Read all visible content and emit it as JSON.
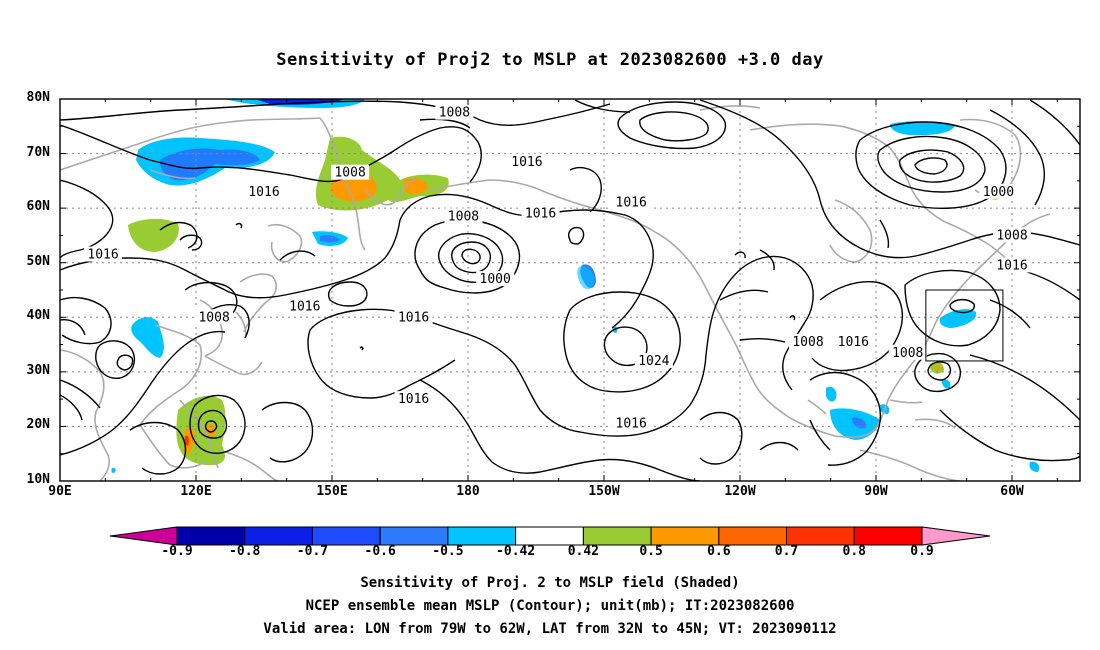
{
  "title": "Sensitivity of Proj2 to MSLP at 2023082600 +3.0 day",
  "lat_labels": [
    "80N",
    "70N",
    "60N",
    "50N",
    "40N",
    "30N",
    "20N",
    "10N"
  ],
  "lon_labels": [
    "90E",
    "120E",
    "150E",
    "180",
    "150W",
    "120W",
    "90W",
    "60W"
  ],
  "contour_labels": [
    {
      "text": "1008",
      "lon": 177,
      "lat": 77.5
    },
    {
      "text": "1016",
      "lon": 193,
      "lat": 68.5
    },
    {
      "text": "1008",
      "lon": 154,
      "lat": 66.5
    },
    {
      "text": "1016",
      "lon": 135,
      "lat": 63
    },
    {
      "text": "1016",
      "lon": 196,
      "lat": 59
    },
    {
      "text": "1016",
      "lon": 216,
      "lat": 61
    },
    {
      "text": "1008",
      "lon": 179,
      "lat": 58.5
    },
    {
      "text": "1000",
      "lon": 297,
      "lat": 63
    },
    {
      "text": "1008",
      "lon": 300,
      "lat": 55
    },
    {
      "text": "1016",
      "lon": 300,
      "lat": 49.5
    },
    {
      "text": "1016",
      "lon": 99.5,
      "lat": 51.5
    },
    {
      "text": "1000",
      "lon": 186,
      "lat": 47
    },
    {
      "text": "1016",
      "lon": 144,
      "lat": 42
    },
    {
      "text": "1016",
      "lon": 168,
      "lat": 40
    },
    {
      "text": "1008",
      "lon": 124,
      "lat": 40
    },
    {
      "text": "1024",
      "lon": 221,
      "lat": 32
    },
    {
      "text": "1008",
      "lon": 255,
      "lat": 35.5
    },
    {
      "text": "1016",
      "lon": 265,
      "lat": 35.5
    },
    {
      "text": "1008",
      "lon": 277,
      "lat": 33.5
    },
    {
      "text": "1016",
      "lon": 168,
      "lat": 25
    },
    {
      "text": "1016",
      "lon": 216,
      "lat": 20.5
    }
  ],
  "colorbar": {
    "labels": [
      "-0.9",
      "-0.8",
      "-0.7",
      "-0.6",
      "-0.5",
      "-0.42",
      "0.42",
      "0.5",
      "0.6",
      "0.7",
      "0.8",
      "0.9"
    ],
    "colors": [
      "#0000aa",
      "#0a20e6",
      "#1f4cff",
      "#2d7bff",
      "#00c4ff",
      "#ffffff",
      "#99cc33",
      "#ff9900",
      "#ff6600",
      "#ff3300",
      "#ff0000"
    ],
    "low_end_color": "#cc0099",
    "high_end_color": "#ff99cc"
  },
  "captions": [
    "Sensitivity of Proj. 2 to MSLP field (Shaded)",
    "NCEP ensemble mean MSLP (Contour); unit(mb); IT:2023082600",
    "Valid area: LON from 79W to 62W, LAT from 32N to 45N; VT: 2023090112"
  ],
  "map": {
    "lon_range": [
      90,
      315
    ],
    "lat_range": [
      10,
      80
    ],
    "valid_area": {
      "lon": [
        281,
        298
      ],
      "lat": [
        32,
        45
      ]
    },
    "colors": {
      "contour": "#000000",
      "coast": "#aaaaaa",
      "grid": "#888888"
    }
  }
}
